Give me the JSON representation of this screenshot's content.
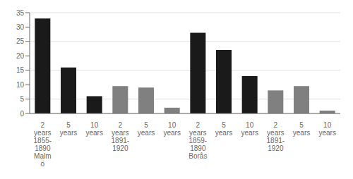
{
  "chart_data": {
    "type": "bar",
    "categories": [
      "2\nyears\n1855-\n1890\nMalm\nö",
      "5\nyears",
      "10\nyears",
      "2\nyears\n1891-\n1920",
      "5\nyears",
      "10\nyears",
      "2\nyears\n1859-\n1890\nBorås",
      "5\nyears",
      "10\nyears",
      "2\nyears\n1891-\n1920",
      "5\nyears",
      "10\nyears"
    ],
    "values": [
      33,
      16,
      6,
      9.5,
      9,
      2,
      28,
      22,
      13,
      8,
      9.5,
      1
    ],
    "colors": [
      "#1a1a1a",
      "#1a1a1a",
      "#1a1a1a",
      "#808080",
      "#808080",
      "#808080",
      "#1a1a1a",
      "#1a1a1a",
      "#1a1a1a",
      "#808080",
      "#808080",
      "#808080"
    ],
    "ylim": [
      0,
      35
    ],
    "yticks": [
      0,
      5,
      10,
      15,
      20,
      25,
      30,
      35
    ],
    "grid": true
  }
}
